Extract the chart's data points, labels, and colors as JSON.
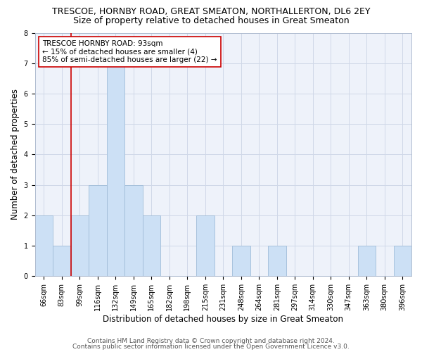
{
  "title": "TRESCOE, HORNBY ROAD, GREAT SMEATON, NORTHALLERTON, DL6 2EY",
  "subtitle": "Size of property relative to detached houses in Great Smeaton",
  "xlabel": "Distribution of detached houses by size in Great Smeaton",
  "ylabel": "Number of detached properties",
  "categories": [
    "66sqm",
    "83sqm",
    "99sqm",
    "116sqm",
    "132sqm",
    "149sqm",
    "165sqm",
    "182sqm",
    "198sqm",
    "215sqm",
    "231sqm",
    "248sqm",
    "264sqm",
    "281sqm",
    "297sqm",
    "314sqm",
    "330sqm",
    "347sqm",
    "363sqm",
    "380sqm",
    "396sqm"
  ],
  "values": [
    2,
    1,
    2,
    3,
    7,
    3,
    2,
    0,
    0,
    2,
    0,
    1,
    0,
    1,
    0,
    0,
    0,
    0,
    1,
    0,
    1
  ],
  "bar_color": "#cce0f5",
  "bar_edge_color": "#a0bcd8",
  "ylim": [
    0,
    8
  ],
  "yticks": [
    0,
    1,
    2,
    3,
    4,
    5,
    6,
    7,
    8
  ],
  "vline_color": "#cc0000",
  "vline_x": 1.5,
  "annotation_label": "TRESCOE HORNBY ROAD: 93sqm",
  "annotation_line1": "← 15% of detached houses are smaller (4)",
  "annotation_line2": "85% of semi-detached houses are larger (22) →",
  "annotation_box_color": "#ffffff",
  "annotation_box_edge": "#cc0000",
  "grid_color": "#d0d8e8",
  "bg_color": "#eef2fa",
  "footer1": "Contains HM Land Registry data © Crown copyright and database right 2024.",
  "footer2": "Contains public sector information licensed under the Open Government Licence v3.0.",
  "title_fontsize": 9,
  "subtitle_fontsize": 9,
  "xlabel_fontsize": 8.5,
  "ylabel_fontsize": 8.5,
  "tick_fontsize": 7,
  "annotation_fontsize": 7.5,
  "footer_fontsize": 6.5
}
